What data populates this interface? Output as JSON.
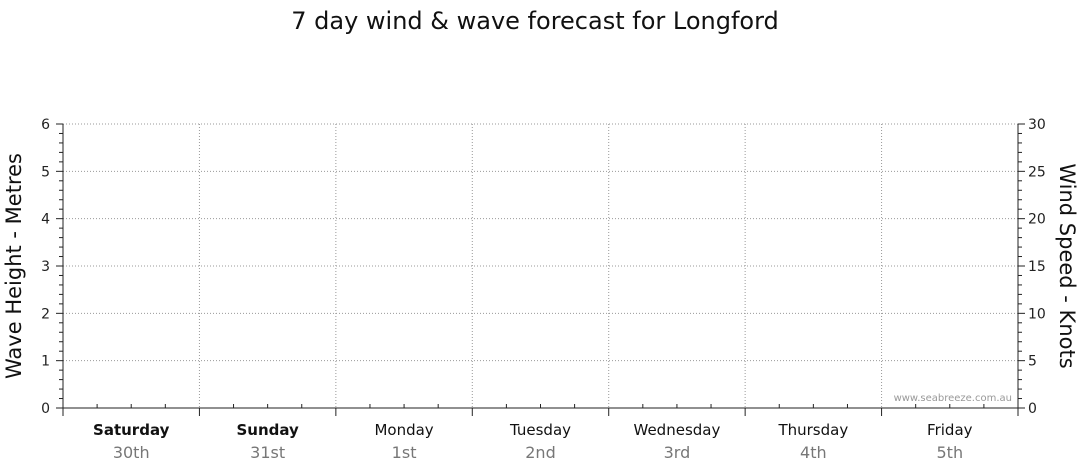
{
  "chart_data": {
    "type": "line",
    "title": "7 day wind & wave forecast for Longford",
    "ylabel_left": "Wave Height - Metres",
    "ylabel_right": "Wind Speed - Knots",
    "ylim_left": [
      0,
      6
    ],
    "ylim_right": [
      0,
      30
    ],
    "yticks_left": [
      "0",
      "1",
      "2",
      "3",
      "4",
      "5",
      "6"
    ],
    "yticks_right": [
      "0",
      "5",
      "10",
      "15",
      "20",
      "25",
      "30"
    ],
    "days": [
      {
        "day": "Saturday",
        "date": "30th",
        "bold": true
      },
      {
        "day": "Sunday",
        "date": "31st",
        "bold": true
      },
      {
        "day": "Monday",
        "date": "1st",
        "bold": false
      },
      {
        "day": "Tuesday",
        "date": "2nd",
        "bold": false
      },
      {
        "day": "Wednesday",
        "date": "3rd",
        "bold": false
      },
      {
        "day": "Thursday",
        "date": "4th",
        "bold": false
      },
      {
        "day": "Friday",
        "date": "5th",
        "bold": false
      }
    ],
    "series": [],
    "grid": true,
    "watermark": "www.seabreeze.com.au"
  }
}
